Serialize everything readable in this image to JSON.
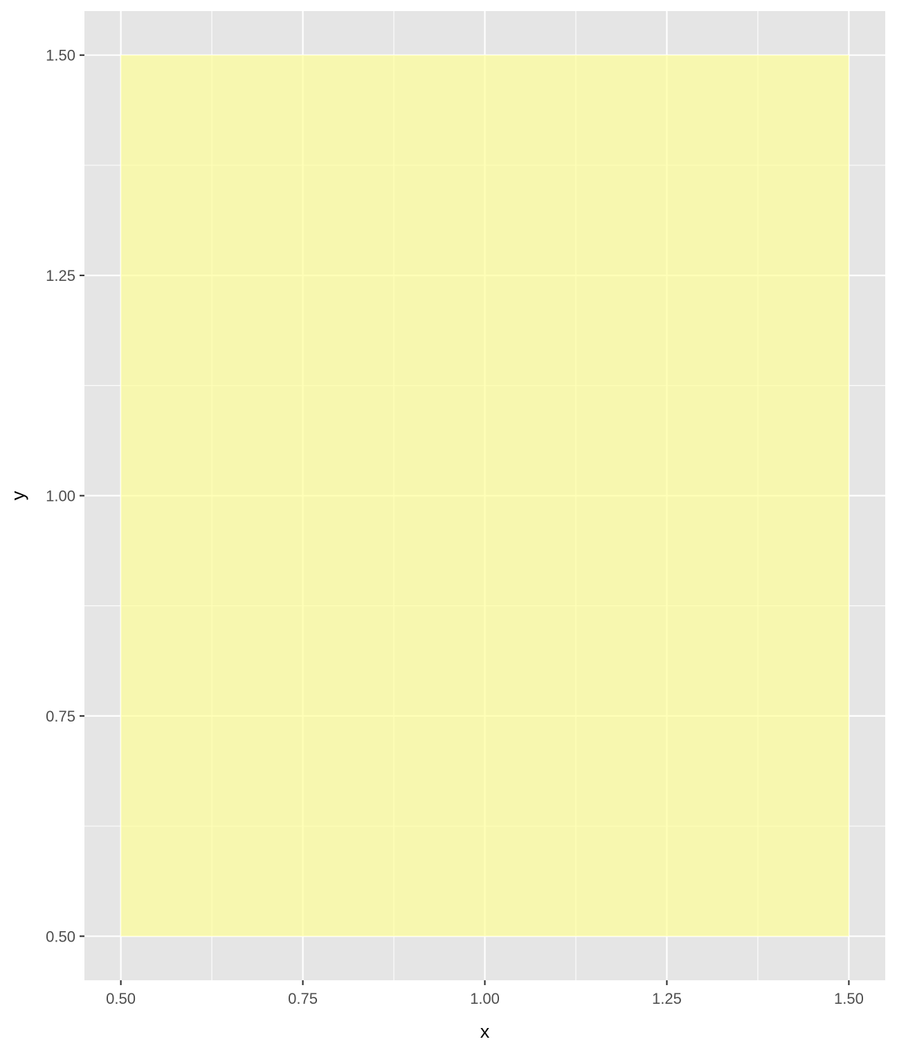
{
  "chart_data": {
    "type": "heatmap",
    "title": "",
    "xlabel": "x",
    "ylabel": "y",
    "xlim": [
      0.45,
      1.55
    ],
    "ylim": [
      0.45,
      1.55
    ],
    "x_ticks": [
      0.5,
      0.75,
      1.0,
      1.25,
      1.5
    ],
    "x_tick_labels": [
      "0.50",
      "0.75",
      "1.00",
      "1.25",
      "1.50"
    ],
    "y_ticks": [
      0.5,
      0.75,
      1.0,
      1.25,
      1.5
    ],
    "y_tick_labels": [
      "0.50",
      "0.75",
      "1.00",
      "1.25",
      "1.50"
    ],
    "x_minor": [
      0.625,
      0.875,
      1.125,
      1.375
    ],
    "y_minor": [
      0.625,
      0.875,
      1.125,
      1.375
    ],
    "grid": true,
    "tiles": [
      {
        "x": 1.0,
        "y": 1.0,
        "width": 1.0,
        "height": 1.0,
        "fill": "#fafaae"
      }
    ]
  },
  "colors": {
    "panel_background": "#e5e5e5",
    "grid": "#ffffff",
    "tile_fill": "#ffff99",
    "tile_opacity": 0.7,
    "tick_color": "#333333",
    "tick_label_color": "#4d4d4d"
  }
}
